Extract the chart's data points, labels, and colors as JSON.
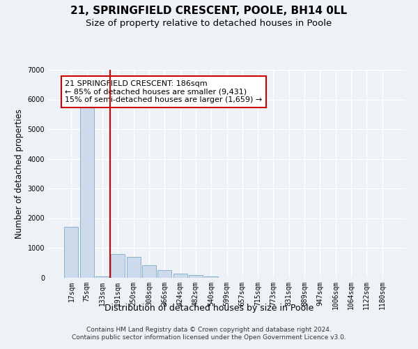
{
  "title": "21, SPRINGFIELD CRESCENT, POOLE, BH14 0LL",
  "subtitle": "Size of property relative to detached houses in Poole",
  "xlabel": "Distribution of detached houses by size in Poole",
  "ylabel": "Number of detached properties",
  "bar_color": "#ccdaec",
  "bar_edge_color": "#7aaac8",
  "vline_color": "#cc0000",
  "vline_pos": 2.5,
  "annotation_line1": "21 SPRINGFIELD CRESCENT: 186sqm",
  "annotation_line2": "← 85% of detached houses are smaller (9,431)",
  "annotation_line3": "15% of semi-detached houses are larger (1,659) →",
  "footer_line1": "Contains HM Land Registry data © Crown copyright and database right 2024.",
  "footer_line2": "Contains public sector information licensed under the Open Government Licence v3.0.",
  "categories": [
    "17sqm",
    "75sqm",
    "133sqm",
    "191sqm",
    "250sqm",
    "308sqm",
    "366sqm",
    "424sqm",
    "482sqm",
    "540sqm",
    "599sqm",
    "657sqm",
    "715sqm",
    "773sqm",
    "831sqm",
    "889sqm",
    "947sqm",
    "1006sqm",
    "1064sqm",
    "1122sqm",
    "1180sqm"
  ],
  "values": [
    1700,
    5750,
    30,
    800,
    700,
    420,
    250,
    120,
    75,
    45,
    0,
    0,
    0,
    0,
    0,
    0,
    0,
    0,
    0,
    0,
    0
  ],
  "ylim_max": 7000,
  "yticks": [
    0,
    1000,
    2000,
    3000,
    4000,
    5000,
    6000,
    7000
  ],
  "bg_color": "#eef2f7",
  "grid_color": "#d8dde8",
  "title_fontsize": 11,
  "subtitle_fontsize": 9.5,
  "ylabel_fontsize": 8.5,
  "xlabel_fontsize": 9,
  "tick_fontsize": 7,
  "footer_fontsize": 6.5,
  "annot_fontsize": 8
}
